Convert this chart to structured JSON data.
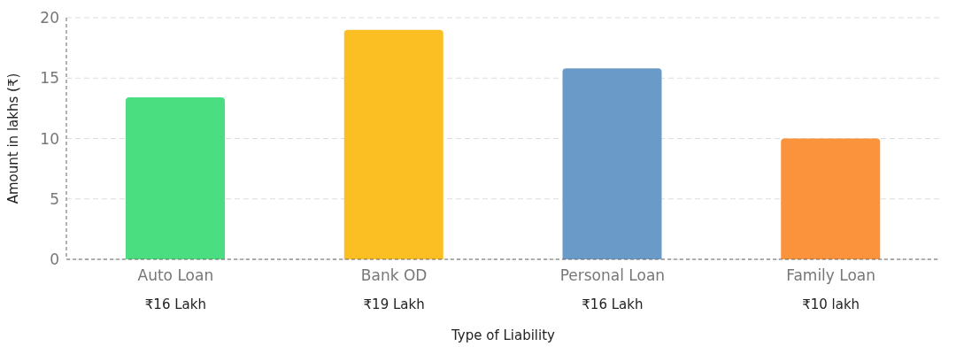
{
  "chart_data": {
    "type": "bar",
    "xlabel": "Type of Liability",
    "ylabel": "Amount in lakhs (₹)",
    "categories": [
      "Auto Loan",
      "Bank OD",
      "Personal Loan",
      "Family Loan"
    ],
    "values": [
      13.4,
      19,
      15.8,
      10
    ],
    "colors": [
      "#4ade80",
      "#fbbf24",
      "#6a9bc8",
      "#fb923c"
    ],
    "ylim": [
      0,
      20
    ],
    "yticks": [
      0,
      5,
      10,
      15,
      20
    ],
    "grid": "y",
    "annotations": [
      "₹16 Lakh",
      "₹19 Lakh",
      "₹16 Lakh",
      "₹10 lakh"
    ]
  }
}
